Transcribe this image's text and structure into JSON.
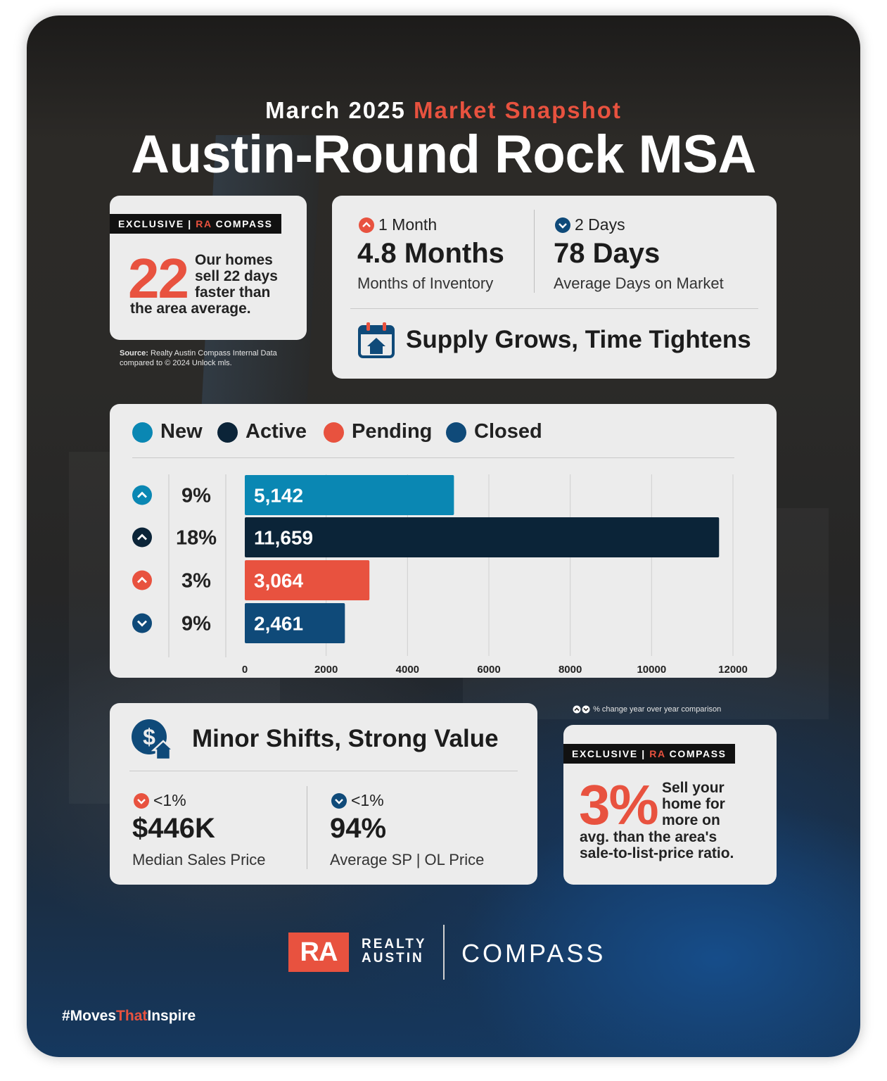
{
  "header": {
    "date_label": "March 2025",
    "subtitle_accent": "Market Snapshot",
    "title": "Austin-Round Rock MSA"
  },
  "exclusive_card_1": {
    "badge_prefix": "EXCLUSIVE | ",
    "badge_ra": "RA",
    "badge_suffix": " COMPASS",
    "big_number": "22",
    "line1": "Our homes",
    "line2": "sell 22 days",
    "line3": "faster than",
    "line4": "the area average.",
    "source_label": "Source:",
    "source_text": "Realty Austin Compass Internal Data compared to © 2024 Unlock mls."
  },
  "supply_card": {
    "left_change_dir": "up",
    "left_change": "1 Month",
    "left_value": "4.8 Months",
    "left_label": "Months of Inventory",
    "right_change_dir": "down",
    "right_change": "2 Days",
    "right_value": "78 Days",
    "right_label": "Average Days on Market",
    "headline": "Supply Grows, Time Tightens",
    "icon": "calendar-house-icon"
  },
  "colors": {
    "accent": "#e8523f",
    "new": "#0a87b3",
    "active": "#0b2438",
    "pending": "#e8523f",
    "closed": "#0f4a79",
    "card_bg": "#ececec"
  },
  "chart_data": {
    "type": "bar",
    "orientation": "horizontal",
    "categories": [
      "New",
      "Active",
      "Pending",
      "Closed"
    ],
    "values": [
      5142,
      11659,
      3064,
      2461
    ],
    "value_labels": [
      "5,142",
      "11,659",
      "3,064",
      "2,461"
    ],
    "changes": [
      "9%",
      "18%",
      "3%",
      "9%"
    ],
    "change_directions": [
      "up",
      "up",
      "up",
      "down"
    ],
    "xlim": [
      0,
      12000
    ],
    "xticks": [
      0,
      2000,
      4000,
      6000,
      8000,
      10000,
      12000
    ],
    "grid": true,
    "legend_position": "top"
  },
  "legend": [
    "New",
    "Active",
    "Pending",
    "Closed"
  ],
  "value_card": {
    "headline": "Minor Shifts, Strong Value",
    "icon": "dollar-house-icon",
    "left_change_dir": "down",
    "left_change": "<1%",
    "left_value": "$446K",
    "left_label": "Median Sales Price",
    "right_change_dir": "down",
    "right_change": "<1%",
    "right_value": "94%",
    "right_label": "Average SP | OL Price"
  },
  "yoy_note": "% change year over year comparison",
  "exclusive_card_2": {
    "badge_prefix": "EXCLUSIVE | ",
    "badge_ra": "RA",
    "badge_suffix": " COMPASS",
    "big_number": "3%",
    "line1": "Sell your",
    "line2": "home for",
    "line3": "more on",
    "line4": "avg. than the area's",
    "line5": "sale-to-list-price ratio."
  },
  "footer": {
    "ra_logo": "RA",
    "realty": "REALTY",
    "austin": "AUSTIN",
    "compass": "COMPASS",
    "hashtag_1": "#Moves",
    "hashtag_2": "That",
    "hashtag_3": "Inspire"
  }
}
